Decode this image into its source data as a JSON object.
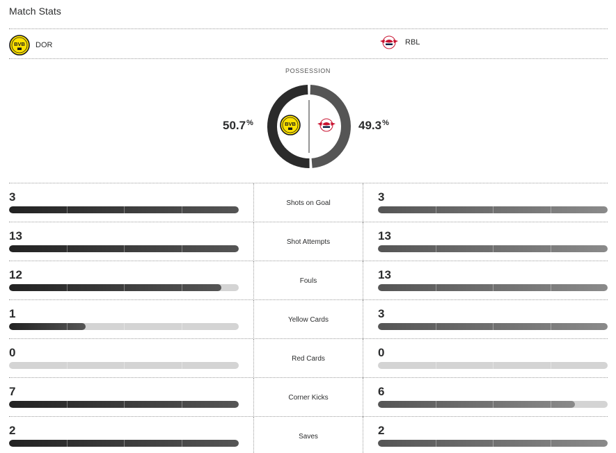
{
  "title": "Match Stats",
  "colors": {
    "home": "#2b2b2b",
    "away": "#555555",
    "track": "#d4d4d4",
    "bvb_yellow": "#fde100"
  },
  "teams": {
    "home": {
      "abbr": "DOR",
      "logo_icon": "bvb-crest-icon",
      "logo_text": "BVB"
    },
    "away": {
      "abbr": "RBL",
      "logo_icon": "rbl-crest-icon"
    }
  },
  "possession": {
    "label": "POSSESSION",
    "home": "50.7",
    "away": "49.3",
    "unit": "%",
    "home_value": 50.7,
    "away_value": 49.3
  },
  "stats": [
    {
      "name": "Shots on Goal",
      "home": "3",
      "away": "3",
      "home_fill": 1.0,
      "away_fill": 1.0
    },
    {
      "name": "Shot Attempts",
      "home": "13",
      "away": "13",
      "home_fill": 1.0,
      "away_fill": 1.0
    },
    {
      "name": "Fouls",
      "home": "12",
      "away": "13",
      "home_fill": 0.923,
      "away_fill": 1.0
    },
    {
      "name": "Yellow Cards",
      "home": "1",
      "away": "3",
      "home_fill": 0.333,
      "away_fill": 1.0
    },
    {
      "name": "Red Cards",
      "home": "0",
      "away": "0",
      "home_fill": 0.0,
      "away_fill": 0.0
    },
    {
      "name": "Corner Kicks",
      "home": "7",
      "away": "6",
      "home_fill": 1.0,
      "away_fill": 0.857
    },
    {
      "name": "Saves",
      "home": "2",
      "away": "2",
      "home_fill": 1.0,
      "away_fill": 1.0
    }
  ]
}
